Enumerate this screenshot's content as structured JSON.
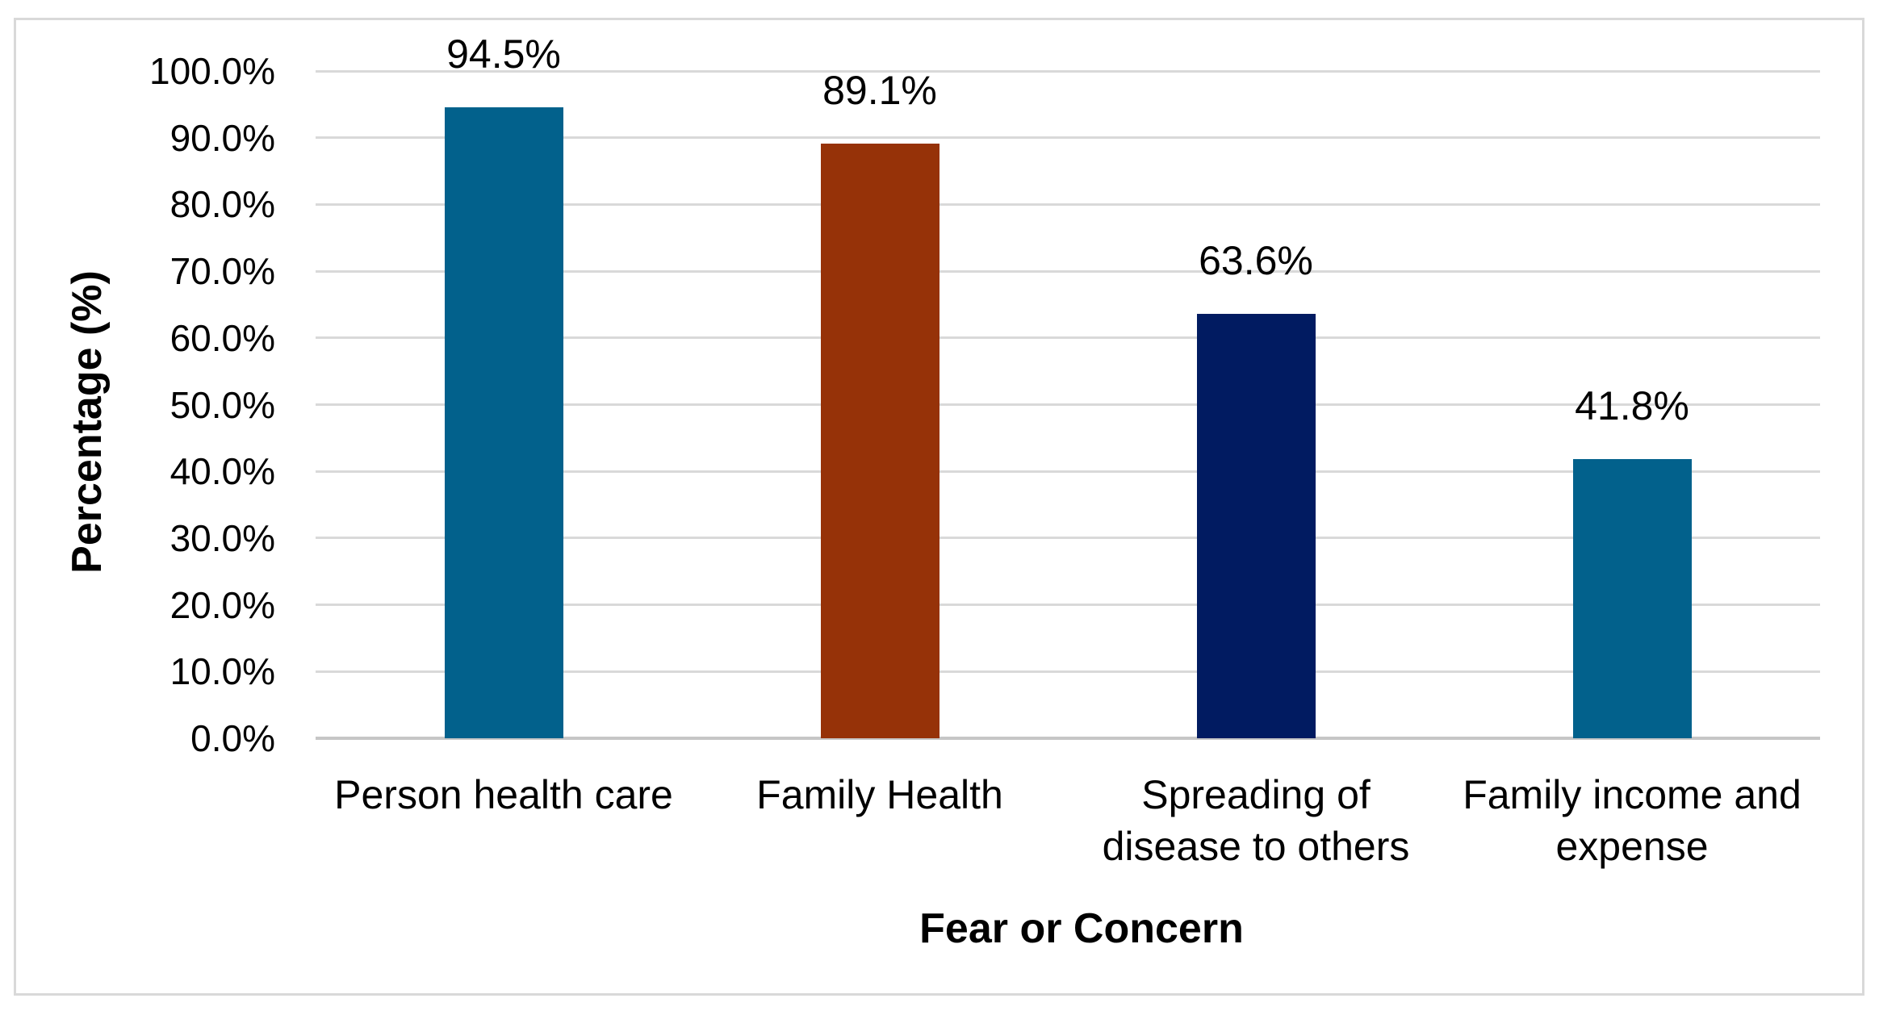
{
  "chart_data": {
    "type": "bar",
    "title": "",
    "xlabel": "Fear or Concern",
    "ylabel": "Percentage (%)",
    "categories": [
      "Person health care",
      "Family Health",
      "Spreading of disease to others",
      "Family income and expense"
    ],
    "category_lines": [
      [
        "Person health care"
      ],
      [
        "Family Health"
      ],
      [
        "Spreading of",
        "disease to others"
      ],
      [
        "Family income and",
        "expense"
      ]
    ],
    "values": [
      94.5,
      89.1,
      63.6,
      41.8
    ],
    "value_labels": [
      "94.5%",
      "89.1%",
      "63.6%",
      "41.8%"
    ],
    "bar_colors": [
      "#02618C",
      "#963208",
      "#011B61",
      "#02618C"
    ],
    "ylim": [
      0,
      100
    ],
    "ytick_step": 10,
    "ytick_labels": [
      "0.0%",
      "10.0%",
      "20.0%",
      "30.0%",
      "40.0%",
      "50.0%",
      "60.0%",
      "70.0%",
      "80.0%",
      "90.0%",
      "100.0%"
    ],
    "grid": true,
    "legend": "none",
    "colors": {
      "gridline": "#D9D9D9",
      "axis_line": "#C6C6C6",
      "frame_border": "#D9D9D9",
      "background": "#FFFFFF",
      "text": "#000000"
    }
  }
}
